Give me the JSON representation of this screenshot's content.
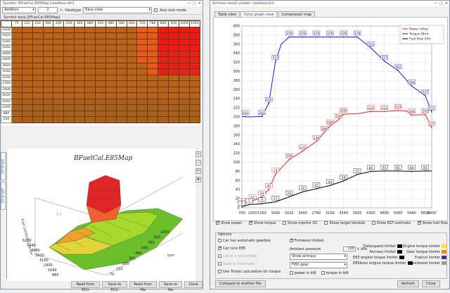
{
  "left_window": {
    "title": "Symbol: BFuelCal.E85Map [readiesa.bin]",
    "toolbar": {
      "operation": "Addition",
      "step_value": "2",
      "viewtype_label": "Viewtype",
      "viewtype_value": "Easy view",
      "axis_lock_label": "Axis lock mode"
    },
    "grid_label": "Symbol data [BFuelCal.E85Map]",
    "col_headers": [
      "75",
      "125",
      "150",
      "160",
      "200",
      "250",
      "300",
      "360",
      "420",
      "480",
      "560",
      "640",
      "720",
      "780",
      "860",
      "920",
      "1000",
      "1050"
    ],
    "row_headers": [
      "6200",
      "5820",
      "5440",
      "5060",
      "4680",
      "4300",
      "3920",
      "3540",
      "3160",
      "2780",
      "2400",
      "2020",
      "1640",
      "1260",
      "880",
      "500"
    ],
    "side_tabs": [
      "3D Graph",
      "2D Graph"
    ],
    "chart3d": {
      "title": "BFuelCal.E85Map",
      "z_axis_label": "Fuel correction factor",
      "y_axis_label": "rpm",
      "y_ticks": [
        "6200",
        "5440",
        "4680",
        "3920",
        "3160",
        "2400",
        "1640",
        "880"
      ],
      "x_ticks": [
        "1050",
        "920",
        "780",
        "640",
        "480",
        "360",
        "250",
        "150",
        "75"
      ],
      "watermark": "Ex"
    },
    "buttons": [
      "Read from ECU",
      "Save to ECU",
      "Read from file",
      "Save to file",
      "Close"
    ]
  },
  "right_window": {
    "title": "Airmass result viewer: readiesa.bin",
    "tabs": [
      "Table view",
      "Dyno graph view",
      "Compressor map"
    ],
    "active_tab": "Dyno graph view",
    "show_checks": [
      {
        "label": "Show power",
        "checked": true
      },
      {
        "label": "Show torque",
        "checked": true
      },
      {
        "label": "Show injector DC",
        "checked": false
      },
      {
        "label": "Show target lambda",
        "checked": false
      },
      {
        "label": "Show EGT estimate",
        "checked": false
      },
      {
        "label": "Show fuel flow",
        "checked": true
      }
    ],
    "options_title": "Options",
    "options_left": [
      {
        "label": "Car has automatic gearbox",
        "checked": false
      },
      {
        "label": "Car runs E85",
        "checked": true
      },
      {
        "label": "Car is a convertible",
        "checked": false
      },
      {
        "label": "Saab is motorized",
        "checked": false
      },
      {
        "label": "Use Trionic calculation for torque",
        "checked": false
      }
    ],
    "firmware_limited": {
      "label": "Firmware limited",
      "checked": true
    },
    "ambient_pressure_label": "Ambient pressure",
    "ambient_pressure_value": "100",
    "ambient_pressure_unit": "kPa",
    "airmass_select": "Show airmass",
    "gear_select": "Fifth gear",
    "power_in_kw": {
      "label": "power in kW",
      "checked": false
    },
    "torque_in_lbft": {
      "label": "torque in lbft",
      "checked": false
    },
    "limiters_left": [
      {
        "label": "Turbospeed limiter",
        "color": "#000000"
      },
      {
        "label": "Airmass limiter",
        "color": "#000000"
      },
      {
        "label": "E85 engine torque limiter",
        "color": "#000000"
      },
      {
        "label": "E85Auto engine torque limiter",
        "color": "#000000"
      }
    ],
    "limiters_right": [
      {
        "label": "Engine torque limiter",
        "color": "#f2ea00"
      },
      {
        "label": "Gear torque limiter",
        "color": "#ff8a00"
      },
      {
        "label": "Fuelcut limiter",
        "color": "#4a2b8c"
      },
      {
        "label": "Overboost limiter",
        "color": "#999999"
      }
    ],
    "compare_button": "Compare to another file",
    "refresh_button": "Refresh",
    "close_button": "Close"
  },
  "chart_data": {
    "type": "line",
    "x": [
      700,
      800,
      900,
      1000,
      1200,
      1400,
      1640,
      1800,
      2020,
      2200,
      2400,
      2600,
      2780,
      3000,
      3160,
      3400,
      3540,
      3700,
      3920,
      4100,
      4300,
      4500,
      4680,
      4900,
      5060,
      5300,
      5440,
      5650,
      5820,
      6000
    ],
    "xticks": [
      700,
      1000,
      1260,
      1640,
      2020,
      2400,
      2780,
      3160,
      3540,
      3920,
      4300,
      4680,
      5060,
      5440,
      5820,
      6000
    ],
    "yticks": [
      0,
      20,
      40,
      60,
      80,
      100,
      120,
      140,
      160,
      180,
      200,
      220,
      240,
      260,
      280,
      300,
      320,
      340,
      360,
      380,
      400
    ],
    "ylim": [
      0,
      400
    ],
    "xlim": [
      700,
      6000
    ],
    "legend": [
      "Power (bhp)",
      "Torque (Nm)",
      "Fuel flow (l/h)"
    ],
    "legend_position": "top-right",
    "series": [
      {
        "name": "Power (bhp)",
        "color": "#e02020",
        "points": [
          [
            700,
            8
          ],
          [
            1000,
            15
          ],
          [
            1260,
            24
          ],
          [
            1450,
            40
          ],
          [
            1640,
            74
          ],
          [
            2020,
            106
          ],
          [
            2400,
            125
          ],
          [
            2780,
            146
          ],
          [
            3000,
            166
          ],
          [
            3160,
            180
          ],
          [
            3400,
            194
          ],
          [
            3540,
            206
          ],
          [
            3920,
            207
          ],
          [
            4300,
            212
          ],
          [
            4680,
            212
          ],
          [
            5060,
            214
          ],
          [
            5300,
            213
          ],
          [
            5440,
            204
          ],
          [
            5820,
            205
          ],
          [
            6000,
            177
          ]
        ],
        "labels": [
          [
            700,
            8,
            "8"
          ],
          [
            1000,
            15,
            "15"
          ],
          [
            1260,
            24,
            "24"
          ],
          [
            1450,
            40,
            "40"
          ],
          [
            1640,
            74,
            "74"
          ],
          [
            2020,
            106,
            "106"
          ],
          [
            2400,
            125,
            "125"
          ],
          [
            2780,
            146,
            "146"
          ],
          [
            3000,
            166,
            "166"
          ],
          [
            3160,
            180,
            "180"
          ],
          [
            3400,
            194,
            "194"
          ],
          [
            3540,
            206,
            "206"
          ],
          [
            4300,
            212,
            "212"
          ],
          [
            4680,
            212,
            "212"
          ],
          [
            5060,
            214,
            "214"
          ],
          [
            5440,
            204,
            "204"
          ],
          [
            5820,
            205,
            "205"
          ],
          [
            6000,
            177,
            "177"
          ]
        ]
      },
      {
        "name": "Torque (Nm)",
        "color": "#1a1adc",
        "points": [
          [
            700,
            201
          ],
          [
            900,
            200
          ],
          [
            1260,
            201
          ],
          [
            1450,
            230
          ],
          [
            1640,
            323
          ],
          [
            1800,
            360
          ],
          [
            2020,
            376
          ],
          [
            2400,
            376
          ],
          [
            2780,
            376
          ],
          [
            3160,
            376
          ],
          [
            3540,
            376
          ],
          [
            3920,
            376
          ],
          [
            4300,
            352
          ],
          [
            4680,
            323
          ],
          [
            5060,
            302
          ],
          [
            5440,
            268
          ],
          [
            5820,
            247
          ],
          [
            6000,
            211
          ]
        ],
        "labels": [
          [
            800,
            201,
            "201"
          ],
          [
            1260,
            201,
            "201"
          ],
          [
            1450,
            230,
            "230"
          ],
          [
            1640,
            323,
            "323"
          ],
          [
            2020,
            376,
            "376"
          ],
          [
            2400,
            376,
            "376"
          ],
          [
            2780,
            376,
            "376"
          ],
          [
            3160,
            376,
            "376"
          ],
          [
            3540,
            376,
            "376"
          ],
          [
            3920,
            376,
            "376"
          ],
          [
            4300,
            352,
            "352"
          ],
          [
            4680,
            323,
            "323"
          ],
          [
            5060,
            302,
            "302"
          ],
          [
            5440,
            268,
            "268"
          ],
          [
            5820,
            247,
            "247"
          ],
          [
            6000,
            211,
            "211"
          ]
        ]
      },
      {
        "name": "Fuel flow (l/h)",
        "color": "#000000",
        "points": [
          [
            700,
            2
          ],
          [
            900,
            7
          ],
          [
            1260,
            9
          ],
          [
            1640,
            13
          ],
          [
            2020,
            24
          ],
          [
            2400,
            35
          ],
          [
            2780,
            42
          ],
          [
            3160,
            49
          ],
          [
            3540,
            59
          ],
          [
            3920,
            73
          ],
          [
            4300,
            80
          ],
          [
            4680,
            81
          ],
          [
            5060,
            81
          ],
          [
            5440,
            80
          ],
          [
            5820,
            81
          ],
          [
            6000,
            81
          ]
        ],
        "labels": [
          [
            700,
            2,
            "2"
          ],
          [
            900,
            7,
            "7"
          ],
          [
            1260,
            9,
            "9"
          ],
          [
            1640,
            13,
            "13"
          ],
          [
            2020,
            24,
            "24"
          ],
          [
            2400,
            35,
            "35"
          ],
          [
            2780,
            42,
            "42"
          ],
          [
            3160,
            49,
            "49"
          ],
          [
            3540,
            59,
            "59"
          ],
          [
            3920,
            73,
            "73"
          ],
          [
            4300,
            80,
            "80"
          ],
          [
            4680,
            81,
            "81"
          ],
          [
            5060,
            81,
            "81"
          ],
          [
            5440,
            80,
            "80"
          ],
          [
            5820,
            81,
            "81"
          ]
        ]
      }
    ]
  }
}
